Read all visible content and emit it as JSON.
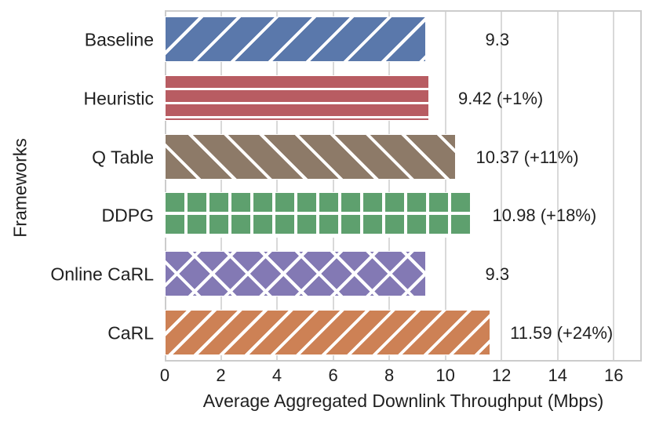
{
  "chart_data": {
    "type": "bar",
    "orientation": "horizontal",
    "title": "",
    "xlabel": "Average Aggregated Downlink Throughput (Mbps)",
    "ylabel": "Frameworks",
    "categories": [
      "Baseline",
      "Heuristic",
      "Q Table",
      "DDPG",
      "Online CaRL",
      "CaRL"
    ],
    "values": [
      9.3,
      9.42,
      10.37,
      10.98,
      9.3,
      11.59
    ],
    "bar_labels": [
      "9.3",
      "9.42 (+1%)",
      "10.37 (+11%)",
      "10.98 (+18%)",
      "9.3",
      "11.59 (+24%)"
    ],
    "colors": [
      "#5A78AB",
      "#B85C62",
      "#8D7A68",
      "#5EA06E",
      "#8379B4",
      "#CD8155"
    ],
    "hatches": [
      "/",
      "-",
      "\\",
      "+",
      "x",
      "//"
    ],
    "hatch_color": "#ffffff",
    "xlim": [
      0,
      17
    ],
    "xticks": [
      0,
      2,
      4,
      6,
      8,
      10,
      12,
      14,
      16
    ],
    "grid": "vertical",
    "grid_color": "#d9d9d9",
    "spine_color": "#cccccc",
    "text_color": "#1f1f1f",
    "background": "#ffffff",
    "legend": "none"
  }
}
